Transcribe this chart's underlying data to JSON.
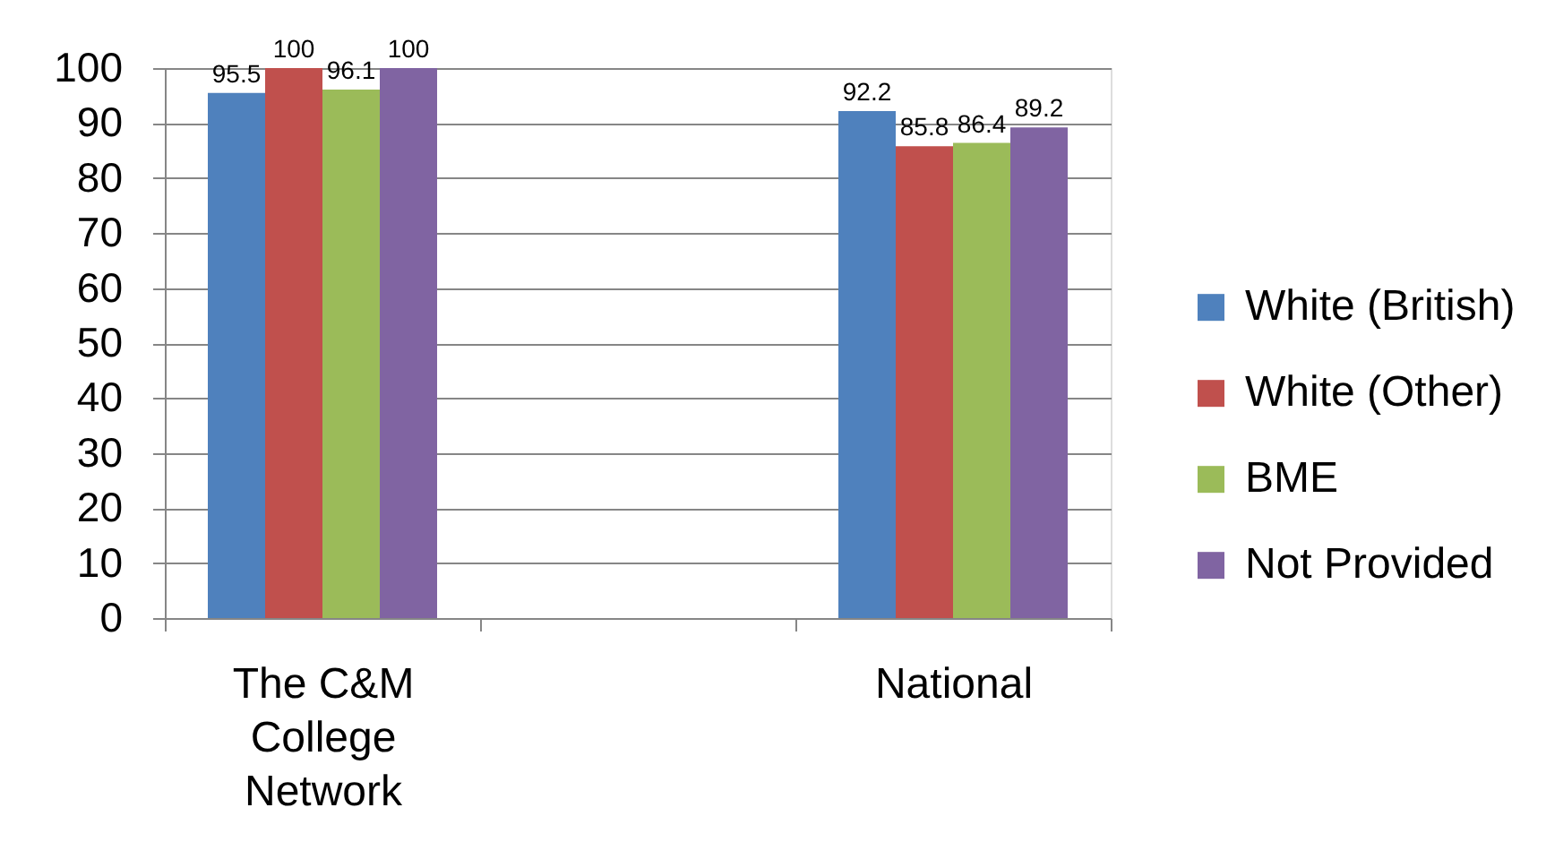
{
  "chart_data": {
    "type": "bar",
    "categories": [
      "The C&M College Network",
      null,
      "National"
    ],
    "series": [
      {
        "name": "White (British)",
        "color": "#4f81bd",
        "values": [
          95.5,
          null,
          92.2
        ]
      },
      {
        "name": "White (Other)",
        "color": "#c0504d",
        "values": [
          100,
          null,
          85.8
        ]
      },
      {
        "name": "BME",
        "color": "#9bbb59",
        "values": [
          96.1,
          null,
          86.4
        ]
      },
      {
        "name": "Not Provided",
        "color": "#8064a2",
        "values": [
          100,
          null,
          89.2
        ]
      }
    ],
    "ylim": [
      0,
      100
    ],
    "yticks": [
      0,
      10,
      20,
      30,
      40,
      50,
      60,
      70,
      80,
      90,
      100
    ],
    "grid": "y",
    "legend": "right",
    "data_labels": true
  }
}
